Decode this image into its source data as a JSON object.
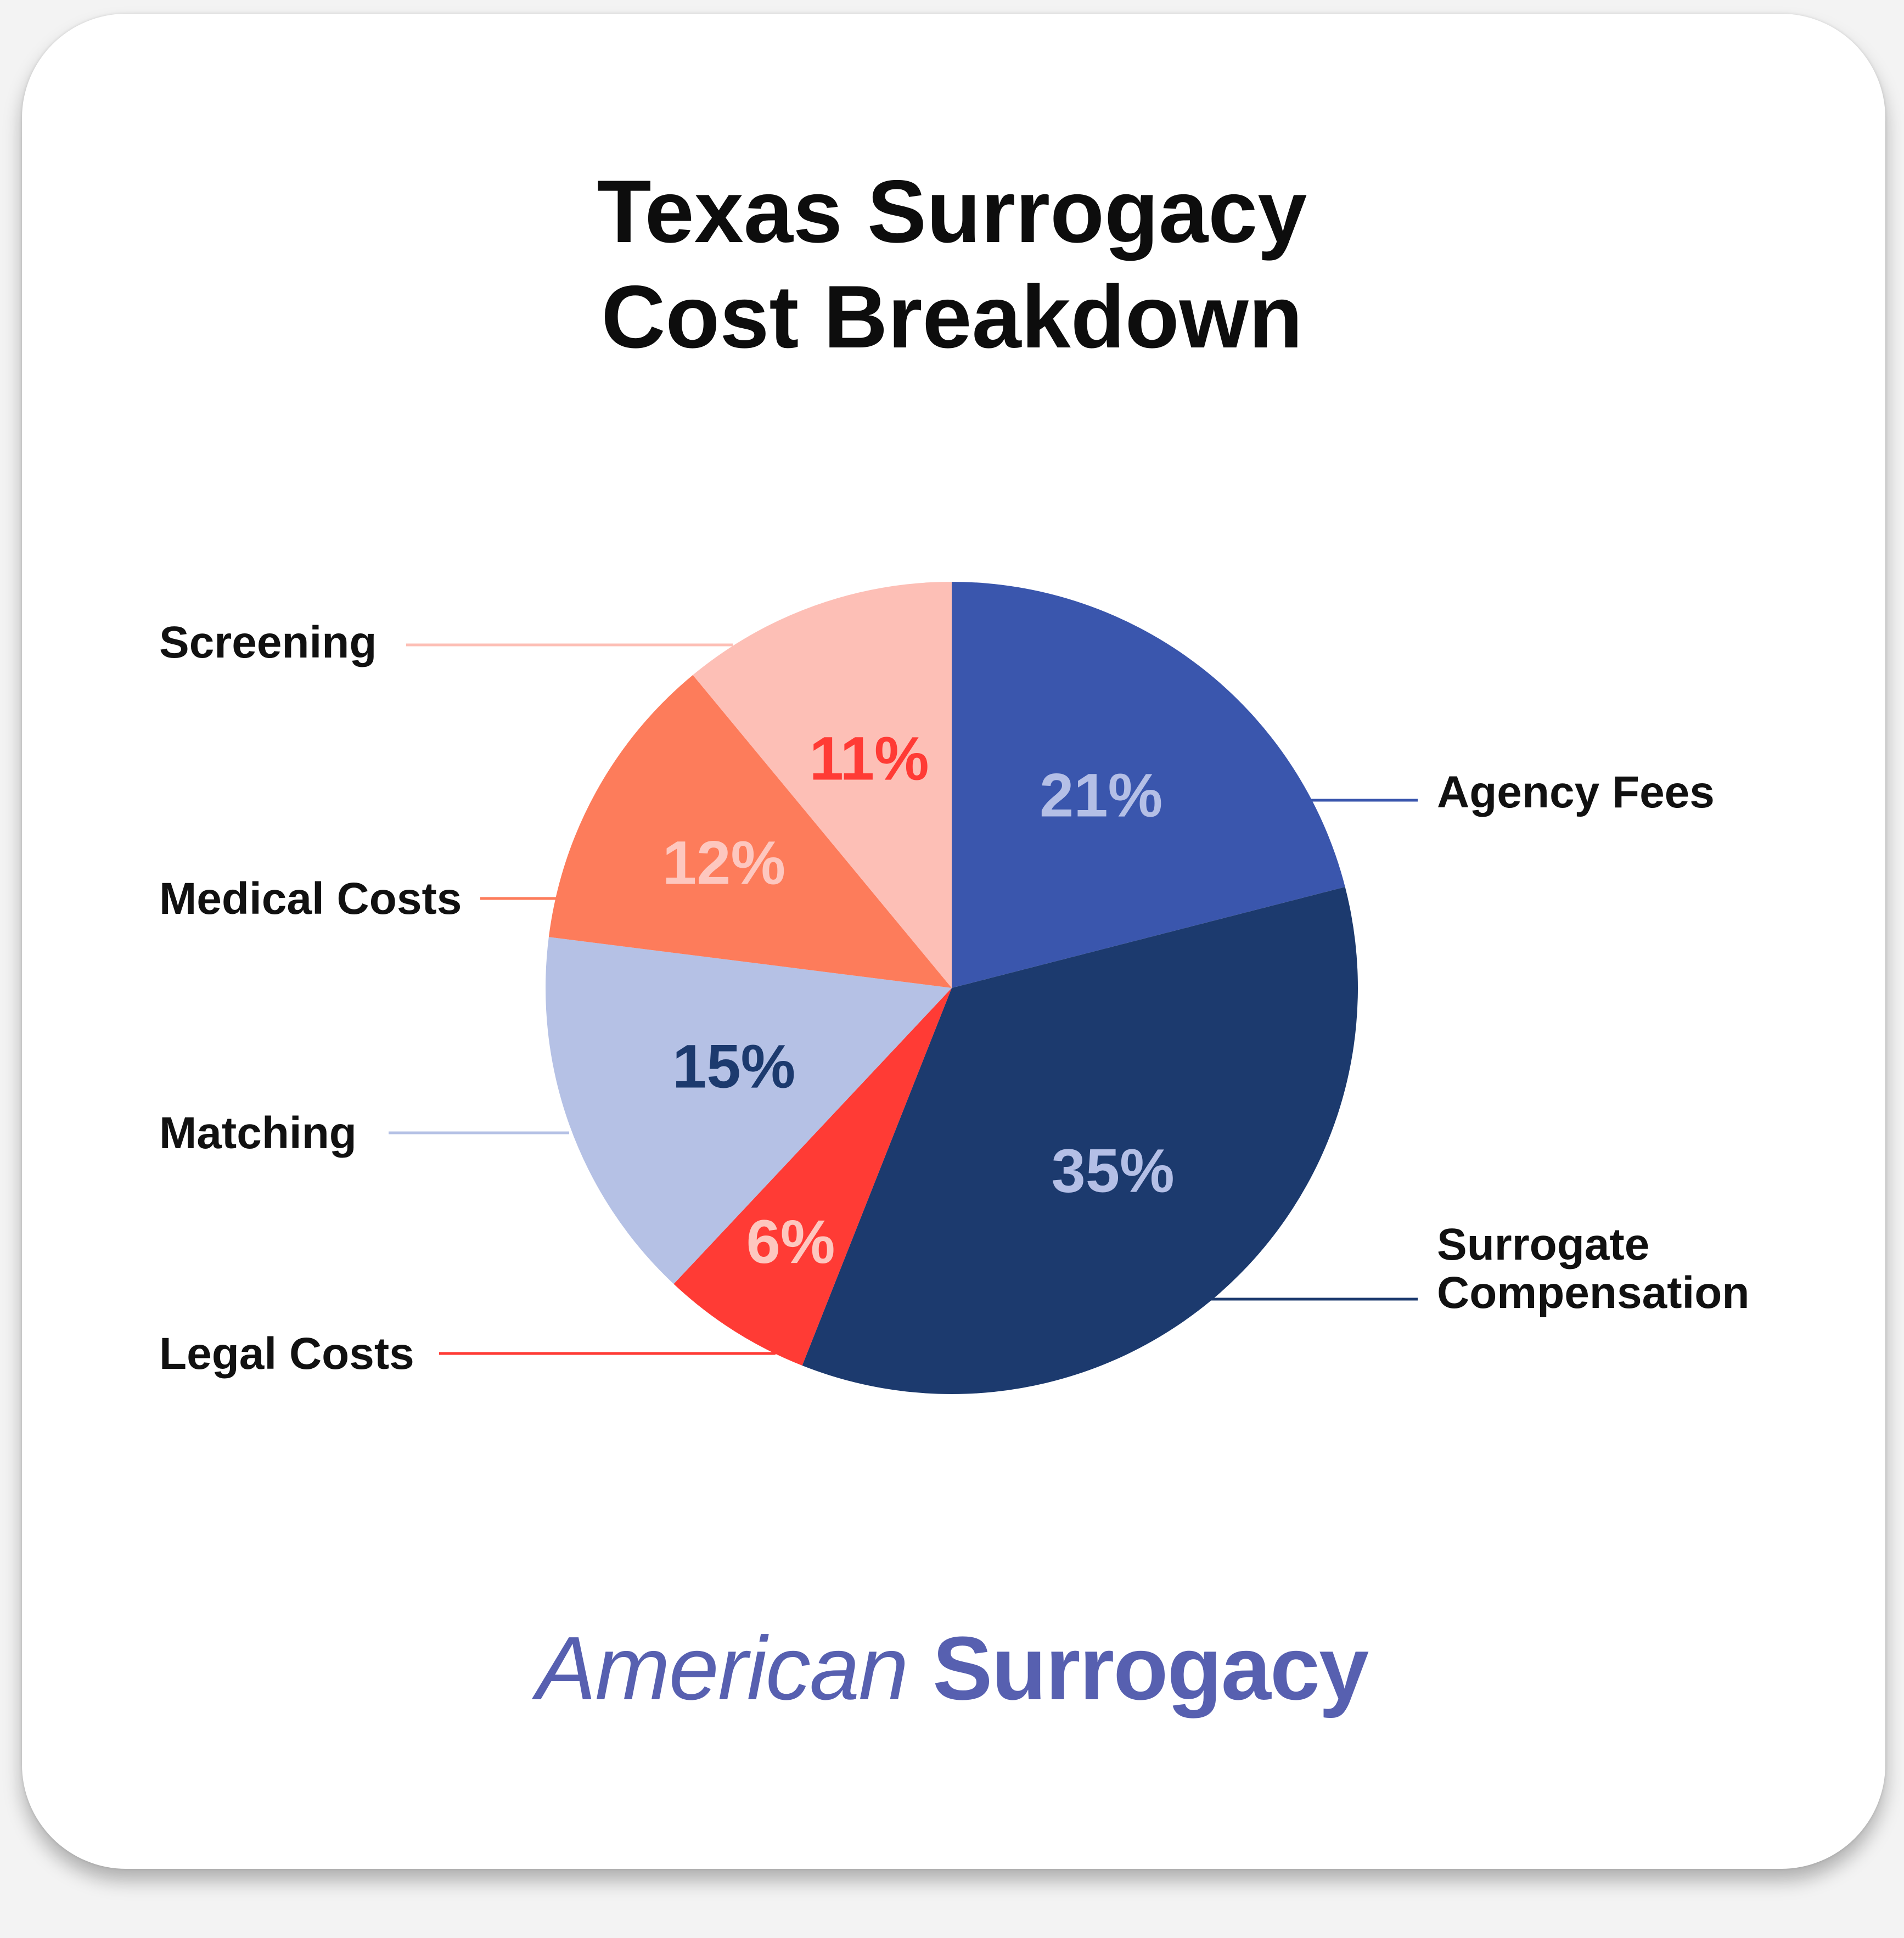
{
  "title_line1": "Texas Surrogacy",
  "title_line2": "Cost Breakdown",
  "brand": {
    "light": "American",
    "bold": "Surrogacy",
    "color": "#5760b0"
  },
  "chart_data": {
    "type": "pie",
    "title": "Texas Surrogacy Cost Breakdown",
    "start": "12 o'clock",
    "direction": "clockwise",
    "slices": [
      {
        "name": "Agency Fees",
        "value": 21,
        "label": "21%",
        "color": "#3a56ad",
        "label_color": "#b4bfe6",
        "leader_color": "#3a56ad"
      },
      {
        "name": "Surrogate Compensation",
        "value": 35,
        "label": "35%",
        "color": "#1c3a6e",
        "label_color": "#b4bfe6",
        "leader_color": "#1c3a6e"
      },
      {
        "name": "Legal Costs",
        "value": 6,
        "label": "6%",
        "color": "#ff3b35",
        "label_color": "#fdc7bf",
        "leader_color": "#ff3b35"
      },
      {
        "name": "Matching",
        "value": 15,
        "label": "15%",
        "color": "#b5c1e5",
        "label_color": "#1c3a6e",
        "leader_color": "#b5c1e5"
      },
      {
        "name": "Medical Costs",
        "value": 12,
        "label": "12%",
        "color": "#fd7c5b",
        "label_color": "#fdc7bf",
        "leader_color": "#fd7c5b"
      },
      {
        "name": "Screening",
        "value": 11,
        "label": "11%",
        "color": "#fdbfb6",
        "label_color": "#ff3b35",
        "leader_color": "#fdbfb6"
      }
    ],
    "legend": {
      "Agency Fees": [
        "Agency Fees"
      ],
      "Surrogate Compensation": [
        "Surrogate",
        "Compensation"
      ],
      "Legal Costs": [
        "Legal Costs"
      ],
      "Matching": [
        "Matching"
      ],
      "Medical Costs": [
        "Medical Costs"
      ],
      "Screening": [
        "Screening"
      ]
    }
  }
}
